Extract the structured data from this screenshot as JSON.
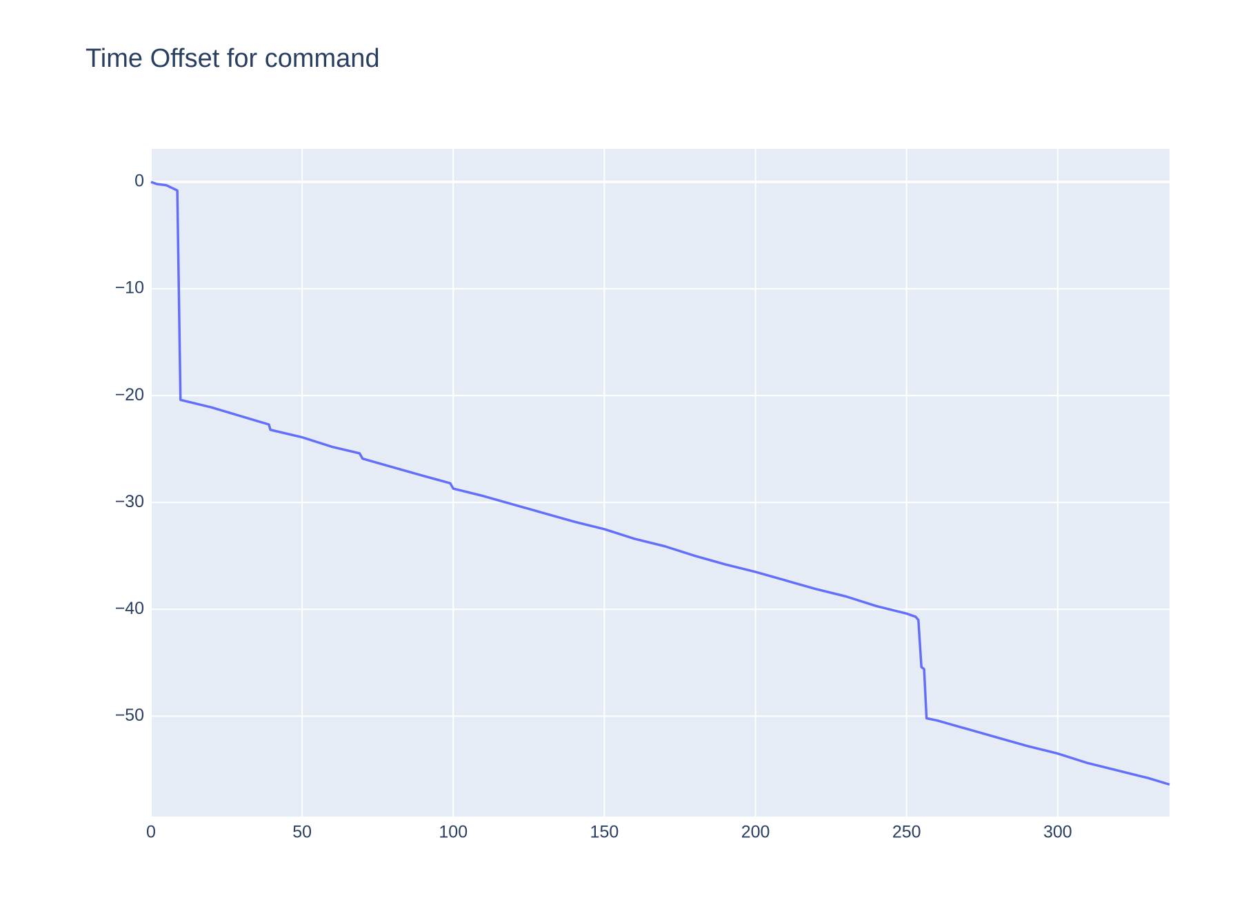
{
  "chart_data": {
    "type": "line",
    "title": "Time Offset for command",
    "x": [
      0,
      2,
      5,
      8,
      8.7,
      9.75,
      20,
      39,
      39.5,
      50,
      60,
      69,
      70,
      80,
      90,
      99,
      100,
      110,
      120,
      130,
      140,
      150,
      160,
      170,
      180,
      190,
      200,
      210,
      220,
      230,
      240,
      250,
      253,
      253.9,
      254.9,
      255.8,
      256.6,
      260,
      270,
      280,
      290,
      300,
      310,
      320,
      330,
      337
    ],
    "values": [
      0,
      -0.2,
      -0.3,
      -0.7,
      -0.8,
      -20.4,
      -21.1,
      -22.7,
      -23.2,
      -23.9,
      -24.8,
      -25.4,
      -25.9,
      -26.7,
      -27.5,
      -28.2,
      -28.7,
      -29.4,
      -30.2,
      -31.0,
      -31.8,
      -32.5,
      -33.4,
      -34.1,
      -35.0,
      -35.8,
      -36.5,
      -37.3,
      -38.1,
      -38.8,
      -39.7,
      -40.4,
      -40.7,
      -41.0,
      -45.4,
      -45.6,
      -50.2,
      -50.4,
      -51.2,
      -52.0,
      -52.8,
      -53.5,
      -54.4,
      -55.1,
      -55.8,
      -56.4
    ],
    "color": "#636efa",
    "xlim": [
      0,
      337
    ],
    "xticks": [
      0,
      50,
      100,
      150,
      200,
      250,
      300
    ],
    "ylim": [
      -59.4,
      3.1
    ],
    "yticks": [
      0,
      {
        "value": -10,
        "label": "−10"
      },
      {
        "value": -20,
        "label": "−20"
      },
      {
        "value": -30,
        "label": "−30"
      },
      {
        "value": -40,
        "label": "−40"
      },
      {
        "value": -50,
        "label": "−50"
      }
    ],
    "grid": true
  }
}
